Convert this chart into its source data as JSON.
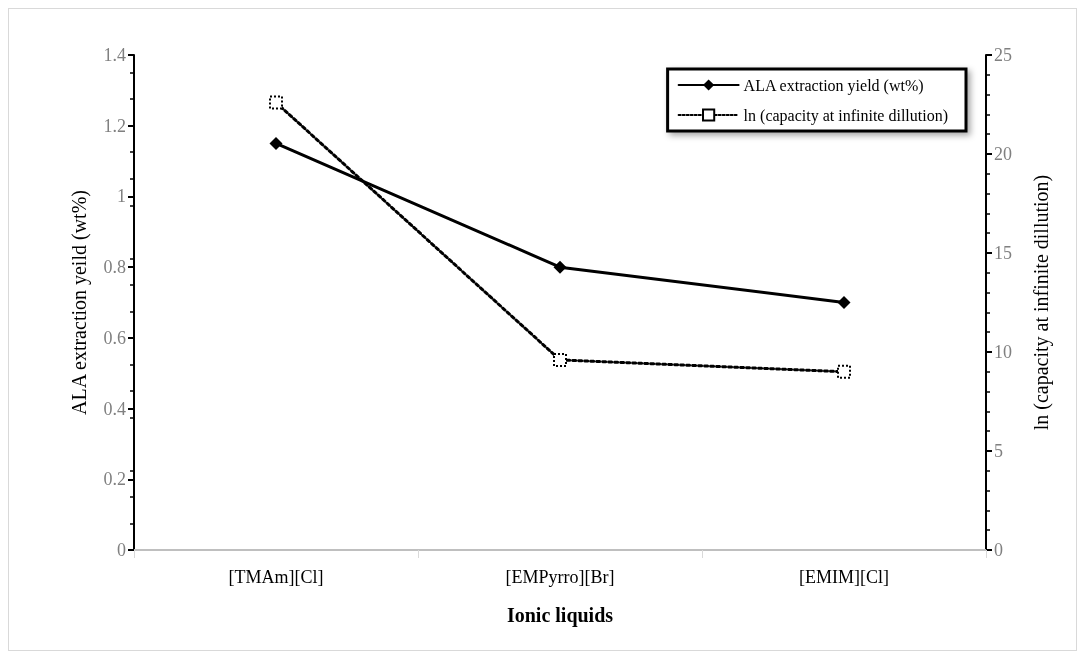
{
  "chart_data": {
    "type": "line",
    "xlabel": "Ionic liquids",
    "ylabel": "ALA extraction yeild (wt%)",
    "y2label": "ln (capacity at infinite dillution)",
    "categories": [
      "[TMAm][Cl]",
      "[EMPyrro][Br]",
      "[EMIM][Cl]"
    ],
    "series": [
      {
        "name": "ALA extraction yield (wt%)",
        "color": "#000000",
        "values": [
          1.15,
          0.8,
          0.7
        ],
        "marker": "diamond",
        "line_style": "solid"
      },
      {
        "name": "ln (capacity at infinite dillution)",
        "color": "#000000",
        "values": [
          22.6,
          9.6,
          9.0
        ],
        "axis": "y2",
        "marker": "square",
        "line_style": "dotted"
      }
    ],
    "ylim": [
      0,
      1.4
    ],
    "yticks": [
      0,
      0.2,
      0.4,
      0.6,
      0.8,
      1,
      1.2,
      1.4
    ],
    "y2lim": [
      0,
      25
    ],
    "y2ticks": [
      0,
      5,
      10,
      15,
      20,
      25
    ],
    "grid": false,
    "legend": "top right"
  }
}
